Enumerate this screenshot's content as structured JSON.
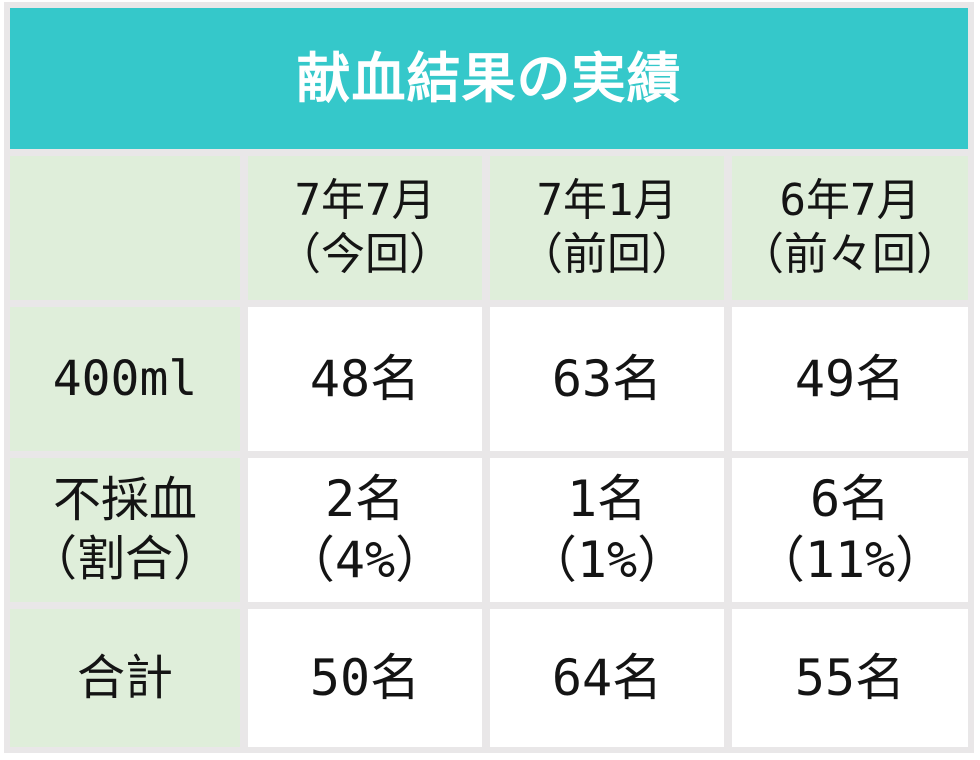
{
  "table": {
    "title": "献血結果の実績",
    "columns": [
      {
        "l1": "7年7月",
        "l2": "（今回）"
      },
      {
        "l1": "7年1月",
        "l2": "（前回）"
      },
      {
        "l1": "6年7月",
        "l2": "（前々回）"
      }
    ],
    "rows": [
      {
        "label": {
          "l1": "400ml"
        },
        "c1": {
          "l1": "48名"
        },
        "c2": {
          "l1": "63名"
        },
        "c3": {
          "l1": "49名"
        }
      },
      {
        "label": {
          "l1": "不採血",
          "l2": "（割合）"
        },
        "c1": {
          "l1": "2名",
          "l2": "（4%）"
        },
        "c2": {
          "l1": "1名",
          "l2": "（1%）"
        },
        "c3": {
          "l1": "6名",
          "l2": "（11%）"
        }
      },
      {
        "label": {
          "l1": "合計"
        },
        "c1": {
          "l1": "50名"
        },
        "c2": {
          "l1": "64名"
        },
        "c3": {
          "l1": "55名"
        }
      }
    ]
  },
  "colors": {
    "title_bar": "#35c8ca",
    "header_green": "#dfeeda",
    "frame_gray": "#e9e7e8",
    "cell_white": "#ffffff",
    "text": "#141414",
    "title_text": "#ffffff"
  },
  "chart_data": {
    "type": "table",
    "title": "献血結果の実績",
    "columns": [
      "",
      "7年7月（今回）",
      "7年1月（前回）",
      "6年7月（前々回）"
    ],
    "rows": [
      [
        "400ml",
        "48名",
        "63名",
        "49名"
      ],
      [
        "不採血（割合）",
        "2名（4%）",
        "1名（1%）",
        "6名（11%）"
      ],
      [
        "合計",
        "50名",
        "64名",
        "55名"
      ]
    ]
  }
}
